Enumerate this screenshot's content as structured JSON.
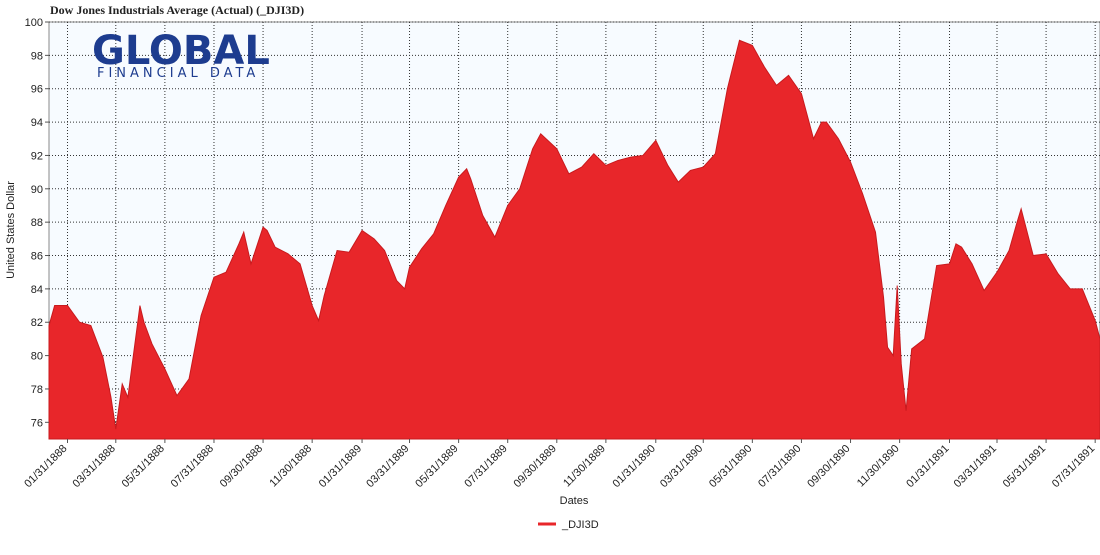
{
  "chart_data": {
    "type": "area",
    "title": "Dow Jones Industrials Average (Actual) (_DJI3D)",
    "logo": {
      "name": "GLOBAL",
      "tagline": "FINANCIAL DATA"
    },
    "xlabel": "Dates",
    "ylabel": "United States Dollar",
    "xlim": [
      "01/08/1888",
      "08/06/1891"
    ],
    "ylim": [
      75,
      100
    ],
    "yticks": [
      76,
      78,
      80,
      82,
      84,
      86,
      88,
      90,
      92,
      94,
      96,
      98,
      100
    ],
    "xticks": [
      "01/31/1888",
      "03/31/1888",
      "05/31/1888",
      "07/31/1888",
      "09/30/1888",
      "11/30/1888",
      "01/31/1889",
      "03/31/1889",
      "05/31/1889",
      "07/31/1889",
      "09/30/1889",
      "11/30/1889",
      "01/31/1890",
      "03/31/1890",
      "05/31/1890",
      "07/31/1890",
      "09/30/1890",
      "11/30/1890",
      "01/31/1891",
      "03/31/1891",
      "05/31/1891",
      "07/31/1891"
    ],
    "grid": true,
    "legend": "bottom",
    "x": [
      "01/08/1888",
      "01/15/1888",
      "01/31/1888",
      "02/15/1888",
      "02/29/1888",
      "03/15/1888",
      "03/25/1888",
      "03/31/1888",
      "04/08/1888",
      "04/15/1888",
      "04/30/1888",
      "05/05/1888",
      "05/15/1888",
      "05/31/1888",
      "06/15/1888",
      "06/30/1888",
      "07/15/1888",
      "07/31/1888",
      "08/15/1888",
      "08/31/1888",
      "09/06/1888",
      "09/15/1888",
      "09/30/1888",
      "10/05/1888",
      "10/15/1888",
      "10/31/1888",
      "11/15/1888",
      "11/30/1888",
      "12/08/1888",
      "12/15/1888",
      "12/31/1888",
      "01/15/1889",
      "01/31/1889",
      "02/15/1889",
      "02/28/1889",
      "03/15/1889",
      "03/25/1889",
      "03/31/1889",
      "04/15/1889",
      "04/30/1889",
      "05/15/1889",
      "05/31/1889",
      "06/10/1889",
      "06/15/1889",
      "06/30/1889",
      "07/15/1889",
      "07/31/1889",
      "08/15/1889",
      "08/31/1889",
      "09/10/1889",
      "09/30/1889",
      "10/15/1889",
      "10/31/1889",
      "11/15/1889",
      "11/30/1889",
      "12/15/1889",
      "12/31/1889",
      "01/15/1890",
      "01/31/1890",
      "02/15/1890",
      "02/28/1890",
      "03/15/1890",
      "03/31/1890",
      "04/15/1890",
      "04/30/1890",
      "05/15/1890",
      "05/31/1890",
      "06/15/1890",
      "06/30/1890",
      "07/15/1890",
      "07/31/1890",
      "08/15/1890",
      "08/25/1890",
      "08/31/1890",
      "09/15/1890",
      "09/30/1890",
      "10/15/1890",
      "10/31/1890",
      "11/10/1890",
      "11/15/1890",
      "11/22/1890",
      "11/27/1890",
      "12/02/1890",
      "12/08/1890",
      "12/15/1890",
      "12/31/1890",
      "01/15/1891",
      "01/31/1891",
      "02/08/1891",
      "02/15/1891",
      "02/28/1891",
      "03/15/1891",
      "03/31/1891",
      "04/15/1891",
      "04/25/1891",
      "04/30/1891",
      "05/15/1891",
      "05/31/1891",
      "06/15/1891",
      "06/30/1891",
      "07/15/1891",
      "07/31/1891",
      "08/06/1891"
    ],
    "series": [
      {
        "name": "_DJI3D",
        "color": "#e8262a",
        "values": [
          81.8,
          83.0,
          83.0,
          82.0,
          81.8,
          79.9,
          77.5,
          75.6,
          78.3,
          77.5,
          83.0,
          82.0,
          80.7,
          79.2,
          77.6,
          78.6,
          82.4,
          84.7,
          85.0,
          86.7,
          87.4,
          85.5,
          87.7,
          87.5,
          86.5,
          86.1,
          85.5,
          83.0,
          82.1,
          83.6,
          86.3,
          86.2,
          87.5,
          87.0,
          86.3,
          84.5,
          84.0,
          85.3,
          86.4,
          87.3,
          89.0,
          90.7,
          91.2,
          90.6,
          88.4,
          87.1,
          89.0,
          90.0,
          92.4,
          93.3,
          92.4,
          90.9,
          91.3,
          92.1,
          91.4,
          91.7,
          91.9,
          92.0,
          92.9,
          91.4,
          90.4,
          91.1,
          91.3,
          92.1,
          96.0,
          98.9,
          98.6,
          97.3,
          96.2,
          96.8,
          95.7,
          93.0,
          94.0,
          94.0,
          93.0,
          91.6,
          89.7,
          87.4,
          83.5,
          80.5,
          80.0,
          84.2,
          79.5,
          76.7,
          80.4,
          81.0,
          85.4,
          85.5,
          86.7,
          86.5,
          85.5,
          83.9,
          85.0,
          86.3,
          88.0,
          88.8,
          86.0,
          86.1,
          84.9,
          84.0,
          84.0,
          82.1,
          81.0
        ]
      }
    ]
  }
}
